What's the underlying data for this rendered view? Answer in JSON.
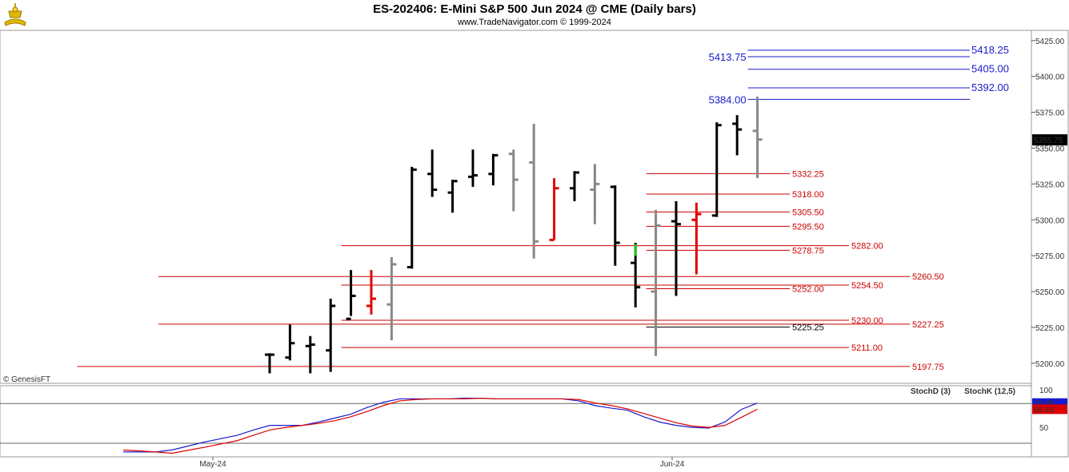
{
  "header": {
    "title": "ES-202406:  E-Mini S&P 500 Jun 2024 @ CME  (Daily bars)",
    "subtitle": "www.TradeNavigator.com © 1999-2024",
    "logo_icon": "trade-navigator-logo-icon"
  },
  "watermark": "© GenesisFT",
  "colors": {
    "up_bar": "#000000",
    "down_bar": "#888888",
    "red_bar": "#e00000",
    "green_bar": "#22cc22",
    "red_level": "#cc0000",
    "blue_level": "#1a1acc",
    "stoch_d": "#dd0000",
    "stoch_k": "#1a1acc"
  },
  "chart_data": [
    {
      "type": "ohlc",
      "title": "ES-202406:  E-Mini S&P 500 Jun 2024 @ CME  (Daily bars)",
      "y_ticks": [
        5200,
        5225,
        5250,
        5275,
        5300,
        5325,
        5350,
        5375,
        5400,
        5425
      ],
      "y_tick_labels": [
        "5200.00",
        "5225.00",
        "5250.00",
        "5275.00",
        "5300.00",
        "5325.00",
        "5350.00",
        "5375.00",
        "5400.00",
        "5425.00"
      ],
      "ylim": [
        5186,
        5431
      ],
      "x_labels": [
        {
          "label": "May-24",
          "bar_index": 0
        },
        {
          "label": "Jun-24",
          "bar_index": 20
        }
      ],
      "last_price": "5355.75",
      "bars": [
        {
          "o": 5206,
          "h": 5207,
          "l": 5193,
          "c": 5206,
          "color": "black"
        },
        {
          "o": 5204,
          "h": 5227,
          "l": 5202,
          "c": 5214,
          "color": "black"
        },
        {
          "o": 5212,
          "h": 5219,
          "l": 5193,
          "c": 5213,
          "color": "black"
        },
        {
          "o": 5209,
          "h": 5245,
          "l": 5194,
          "c": 5240,
          "color": "black"
        },
        {
          "o": 5231,
          "h": 5265,
          "l": 5233,
          "c": 5247,
          "color": "black"
        },
        {
          "o": 5240,
          "h": 5265,
          "l": 5234,
          "c": 5245,
          "color": "red"
        },
        {
          "o": 5241,
          "h": 5274,
          "l": 5216,
          "c": 5269,
          "color": "gray"
        },
        {
          "o": 5267,
          "h": 5337,
          "l": 5266,
          "c": 5335,
          "color": "black"
        },
        {
          "o": 5332,
          "h": 5349,
          "l": 5316,
          "c": 5321,
          "color": "black"
        },
        {
          "o": 5319,
          "h": 5328,
          "l": 5305,
          "c": 5327,
          "color": "black"
        },
        {
          "o": 5330,
          "h": 5349,
          "l": 5323,
          "c": 5331,
          "color": "black"
        },
        {
          "o": 5332,
          "h": 5346,
          "l": 5324,
          "c": 5345,
          "color": "black"
        },
        {
          "o": 5346,
          "h": 5349,
          "l": 5306,
          "c": 5328,
          "color": "gray"
        },
        {
          "o": 5340,
          "h": 5367,
          "l": 5273,
          "c": 5285,
          "color": "gray"
        },
        {
          "o": 5286,
          "h": 5329,
          "l": 5286,
          "c": 5322,
          "color": "red"
        },
        {
          "o": 5322,
          "h": 5334,
          "l": 5313,
          "c": 5333,
          "color": "black"
        },
        {
          "o": 5321,
          "h": 5339,
          "l": 5297,
          "c": 5325,
          "color": "gray"
        },
        {
          "o": 5323,
          "h": 5324,
          "l": 5268,
          "c": 5284,
          "color": "black"
        },
        {
          "o": 5270,
          "h": 5284,
          "l": 5239,
          "c": 5253,
          "color": "black",
          "green_top": [
            5275,
            5283
          ]
        },
        {
          "o": 5250,
          "h": 5307,
          "l": 5205,
          "c": 5296,
          "color": "gray"
        },
        {
          "o": 5299,
          "h": 5313,
          "l": 5247,
          "c": 5297,
          "color": "black"
        },
        {
          "o": 5300,
          "h": 5312,
          "l": 5262,
          "c": 5304,
          "color": "red"
        },
        {
          "o": 5303,
          "h": 5368,
          "l": 5302,
          "c": 5366,
          "color": "black"
        },
        {
          "o": 5367,
          "h": 5373,
          "l": 5345,
          "c": 5363,
          "color": "black"
        },
        {
          "o": 5362,
          "h": 5386,
          "l": 5329,
          "c": 5356,
          "color": "gray"
        }
      ],
      "levels": [
        {
          "value": 5418.25,
          "label": "5418.25",
          "color": "blue",
          "start_bar": 24.0,
          "end": "far"
        },
        {
          "value": 5413.75,
          "label": "5413.75",
          "color": "blue",
          "start_bar": 24.0,
          "end": "far",
          "label_side": "left"
        },
        {
          "value": 5405.0,
          "label": "5405.00",
          "color": "blue",
          "start_bar": 24.0,
          "end": "far"
        },
        {
          "value": 5392.0,
          "label": "5392.00",
          "color": "blue",
          "start_bar": 24.0,
          "end": "far"
        },
        {
          "value": 5384.0,
          "label": "5384.00",
          "color": "blue",
          "start_bar": 24.0,
          "end": "far",
          "label_side": "left"
        },
        {
          "value": 5332.25,
          "label": "5332.25",
          "color": "red",
          "start_bar": 19.0,
          "end": "mid"
        },
        {
          "value": 5318.0,
          "label": "5318.00",
          "color": "red",
          "start_bar": 19.0,
          "end": "mid"
        },
        {
          "value": 5305.5,
          "label": "5305.50",
          "color": "red",
          "start_bar": 19.0,
          "end": "mid"
        },
        {
          "value": 5295.5,
          "label": "5295.50",
          "color": "red",
          "start_bar": 19.0,
          "end": "mid"
        },
        {
          "value": 5282.0,
          "label": "5282.00",
          "color": "red",
          "start_bar": 4.0,
          "end": "near"
        },
        {
          "value": 5278.75,
          "label": "5278.75",
          "color": "red",
          "start_bar": 19.0,
          "end": "mid"
        },
        {
          "value": 5260.5,
          "label": "5260.50",
          "color": "red",
          "start_bar": -5.0,
          "end": "far2"
        },
        {
          "value": 5254.5,
          "label": "5254.50",
          "color": "red",
          "start_bar": 4.0,
          "end": "near"
        },
        {
          "value": 5252.0,
          "label": "5252.00",
          "color": "red",
          "start_bar": 19.0,
          "end": "mid"
        },
        {
          "value": 5230.0,
          "label": "5230.00",
          "color": "red",
          "start_bar": 4.0,
          "end": "near"
        },
        {
          "value": 5227.25,
          "label": "5227.25",
          "color": "red",
          "start_bar": -5.0,
          "end": "far2"
        },
        {
          "value": 5225.25,
          "label": "5225.25",
          "color": "black",
          "start_bar": 19.0,
          "end": "mid"
        },
        {
          "value": 5211.0,
          "label": "5211.00",
          "color": "red",
          "start_bar": 4.0,
          "end": "near"
        },
        {
          "value": 5197.75,
          "label": "5197.75",
          "color": "red",
          "start_bar": -9.0,
          "end": "far2"
        }
      ]
    },
    {
      "type": "line",
      "title": "Stochastic",
      "legend": [
        "StochD (3)",
        "StochK (12,5)"
      ],
      "y_tick_labels": [
        "100",
        "50"
      ],
      "ylim": [
        0,
        100
      ],
      "last_values": {
        "stoch_k": "78.69",
        "stoch_d": "69.40"
      },
      "series": [
        {
          "name": "StochK (12,5)",
          "color": "blue",
          "points": [
            [
              -9,
              5
            ],
            [
              -7,
              5
            ],
            [
              -6,
              8
            ],
            [
              -4,
              20
            ],
            [
              -2,
              30
            ],
            [
              -1,
              38
            ],
            [
              0,
              45
            ],
            [
              1,
              45
            ],
            [
              2,
              45
            ],
            [
              3,
              50
            ],
            [
              4,
              56
            ],
            [
              5,
              62
            ],
            [
              6,
              72
            ],
            [
              7,
              80
            ],
            [
              8,
              85
            ],
            [
              9,
              85
            ],
            [
              10,
              85
            ],
            [
              11,
              85
            ],
            [
              12,
              86
            ],
            [
              13,
              86
            ],
            [
              14,
              85
            ],
            [
              15,
              85
            ],
            [
              16,
              85
            ],
            [
              17,
              85
            ],
            [
              18,
              85
            ],
            [
              19,
              82
            ],
            [
              20,
              75
            ],
            [
              21,
              71
            ],
            [
              22,
              68
            ],
            [
              23,
              58
            ],
            [
              24,
              50
            ],
            [
              25,
              45
            ],
            [
              26,
              42
            ],
            [
              27,
              41
            ],
            [
              28,
              50
            ],
            [
              29,
              69
            ],
            [
              30,
              78.69
            ]
          ]
        },
        {
          "name": "StochD (3)",
          "color": "red",
          "points": [
            [
              -9,
              8
            ],
            [
              -7,
              5
            ],
            [
              -6,
              3
            ],
            [
              -4,
              12
            ],
            [
              -2,
              22
            ],
            [
              -1,
              30
            ],
            [
              0,
              38
            ],
            [
              1,
              42
            ],
            [
              2,
              45
            ],
            [
              3,
              48
            ],
            [
              4,
              52
            ],
            [
              5,
              58
            ],
            [
              6,
              66
            ],
            [
              7,
              75
            ],
            [
              8,
              82
            ],
            [
              9,
              84
            ],
            [
              10,
              85
            ],
            [
              11,
              85
            ],
            [
              12,
              85
            ],
            [
              13,
              86
            ],
            [
              14,
              85
            ],
            [
              15,
              85
            ],
            [
              16,
              85
            ],
            [
              17,
              85
            ],
            [
              18,
              85
            ],
            [
              19,
              84
            ],
            [
              20,
              79
            ],
            [
              21,
              75
            ],
            [
              22,
              70
            ],
            [
              23,
              63
            ],
            [
              24,
              56
            ],
            [
              25,
              49
            ],
            [
              26,
              44
            ],
            [
              27,
              42
            ],
            [
              28,
              45
            ],
            [
              29,
              57
            ],
            [
              30,
              69.4
            ]
          ]
        }
      ],
      "reference_lines": [
        78,
        18
      ]
    }
  ]
}
